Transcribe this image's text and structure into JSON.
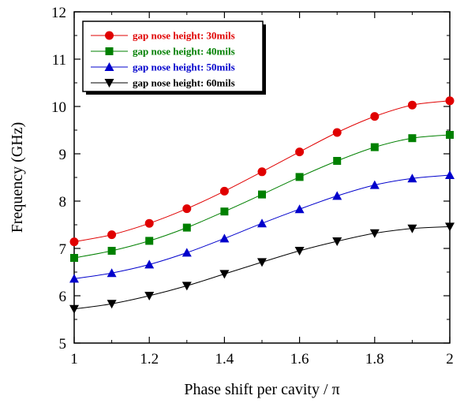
{
  "chart_data": {
    "type": "line",
    "title": "",
    "xlabel": "Phase shift per cavity / π",
    "ylabel": "Frequency (GHz)",
    "xlim": [
      1,
      2
    ],
    "ylim": [
      5,
      12
    ],
    "x_ticks": [
      "1",
      "1.2",
      "1.4",
      "1.6",
      "1.8",
      "2"
    ],
    "y_ticks": [
      "5",
      "6",
      "7",
      "8",
      "9",
      "10",
      "11",
      "12"
    ],
    "grid": false,
    "legend_position": "top-left",
    "x": [
      1.0,
      1.1,
      1.2,
      1.3,
      1.4,
      1.5,
      1.6,
      1.7,
      1.8,
      1.9,
      2.0
    ],
    "series": [
      {
        "name": "gap nose height: 30mils",
        "color": "#e00000",
        "marker": "circle",
        "values": [
          7.14,
          7.29,
          7.53,
          7.84,
          8.21,
          8.62,
          9.04,
          9.45,
          9.79,
          10.03,
          10.12
        ]
      },
      {
        "name": "gap nose height: 40mils",
        "color": "#008000",
        "marker": "square",
        "values": [
          6.8,
          6.95,
          7.16,
          7.44,
          7.78,
          8.14,
          8.51,
          8.85,
          9.14,
          9.33,
          9.4
        ]
      },
      {
        "name": "gap nose height: 50mils",
        "color": "#0000cc",
        "marker": "triangle-up",
        "values": [
          6.36,
          6.48,
          6.66,
          6.91,
          7.21,
          7.53,
          7.83,
          8.11,
          8.34,
          8.48,
          8.55
        ]
      },
      {
        "name": "gap nose height: 60mils",
        "color": "#000000",
        "marker": "triangle-down",
        "values": [
          5.72,
          5.83,
          6.0,
          6.21,
          6.46,
          6.71,
          6.95,
          7.15,
          7.32,
          7.42,
          7.46
        ]
      }
    ]
  }
}
